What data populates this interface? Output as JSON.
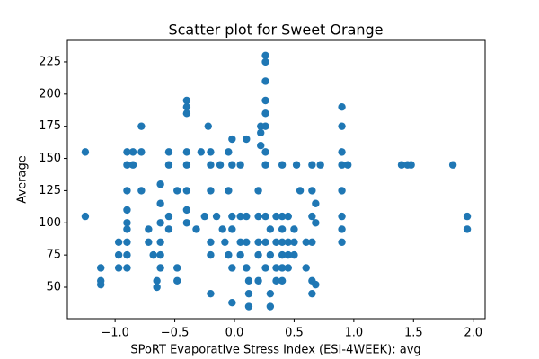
{
  "chart_data": {
    "type": "scatter",
    "title": "Scatter plot for Sweet Orange",
    "x_label": "SPoRT Evaporative Stress Index (ESI-4WEEK): avg",
    "y_label": "Average",
    "color": "#1f77b4",
    "xlim": [
      -1.4,
      2.1
    ],
    "ylim": [
      25.6,
      241.7
    ],
    "xticks": [
      {
        "value": -1.0,
        "label": "−1.0"
      },
      {
        "value": -0.5,
        "label": "−0.5"
      },
      {
        "value": 0.0,
        "label": "0.0"
      },
      {
        "value": 0.5,
        "label": "0.5"
      },
      {
        "value": 1.0,
        "label": "1.0"
      },
      {
        "value": 1.5,
        "label": "1.5"
      },
      {
        "value": 2.0,
        "label": "2.0"
      }
    ],
    "yticks": [
      50,
      75,
      100,
      125,
      150,
      175,
      200,
      225
    ],
    "x": [
      -1.25,
      -1.25,
      -1.12,
      -1.12,
      -1.12,
      -0.97,
      -0.97,
      -0.97,
      -0.9,
      -0.9,
      -0.9,
      -0.9,
      -0.9,
      -0.9,
      -0.9,
      -0.9,
      -0.9,
      -0.85,
      -0.85,
      -0.78,
      -0.78,
      -0.78,
      -0.72,
      -0.72,
      -0.68,
      -0.65,
      -0.65,
      -0.62,
      -0.62,
      -0.62,
      -0.62,
      -0.62,
      -0.62,
      -0.55,
      -0.55,
      -0.55,
      -0.55,
      -0.48,
      -0.48,
      -0.48,
      -0.4,
      -0.4,
      -0.4,
      -0.4,
      -0.4,
      -0.4,
      -0.4,
      -0.4,
      -0.32,
      -0.28,
      -0.25,
      -0.22,
      -0.2,
      -0.2,
      -0.2,
      -0.2,
      -0.2,
      -0.2,
      -0.15,
      -0.12,
      -0.1,
      -0.08,
      -0.05,
      -0.05,
      -0.05,
      -0.02,
      -0.02,
      -0.02,
      -0.02,
      -0.02,
      -0.02,
      0.05,
      0.05,
      0.05,
      0.05,
      0.1,
      0.1,
      0.1,
      0.1,
      0.12,
      0.12,
      0.12,
      0.2,
      0.2,
      0.2,
      0.2,
      0.2,
      0.22,
      0.22,
      0.22,
      0.26,
      0.26,
      0.26,
      0.26,
      0.26,
      0.26,
      0.26,
      0.26,
      0.26,
      0.26,
      0.26,
      0.3,
      0.3,
      0.3,
      0.3,
      0.35,
      0.35,
      0.35,
      0.35,
      0.4,
      0.4,
      0.4,
      0.4,
      0.4,
      0.4,
      0.4,
      0.45,
      0.45,
      0.45,
      0.45,
      0.5,
      0.5,
      0.5,
      0.52,
      0.55,
      0.6,
      0.6,
      0.65,
      0.65,
      0.65,
      0.65,
      0.65,
      0.65,
      0.68,
      0.68,
      0.68,
      0.72,
      0.9,
      0.9,
      0.9,
      0.9,
      0.9,
      0.9,
      0.9,
      0.9,
      0.95,
      1.4,
      1.45,
      1.48,
      1.83,
      1.95,
      1.95
    ],
    "values": [
      155,
      105,
      65,
      55,
      52,
      85,
      75,
      65,
      155,
      145,
      125,
      110,
      100,
      95,
      85,
      75,
      65,
      155,
      145,
      175,
      155,
      125,
      85,
      95,
      75,
      55,
      50,
      130,
      115,
      100,
      85,
      75,
      65,
      155,
      145,
      105,
      95,
      125,
      65,
      55,
      195,
      190,
      185,
      155,
      145,
      125,
      110,
      100,
      95,
      155,
      105,
      175,
      155,
      145,
      125,
      85,
      75,
      45,
      105,
      145,
      95,
      85,
      155,
      125,
      75,
      165,
      145,
      105,
      95,
      65,
      38,
      105,
      85,
      75,
      145,
      165,
      105,
      85,
      65,
      55,
      45,
      35,
      125,
      105,
      85,
      75,
      55,
      175,
      170,
      160,
      230,
      225,
      210,
      195,
      185,
      175,
      155,
      145,
      105,
      85,
      65,
      95,
      75,
      45,
      35,
      105,
      85,
      65,
      55,
      145,
      105,
      95,
      85,
      75,
      65,
      55,
      105,
      85,
      75,
      65,
      95,
      85,
      75,
      145,
      125,
      85,
      65,
      145,
      125,
      105,
      85,
      55,
      45,
      115,
      100,
      52,
      145,
      190,
      175,
      155,
      145,
      125,
      105,
      95,
      85,
      145,
      145,
      145,
      145,
      145,
      105,
      95
    ]
  }
}
